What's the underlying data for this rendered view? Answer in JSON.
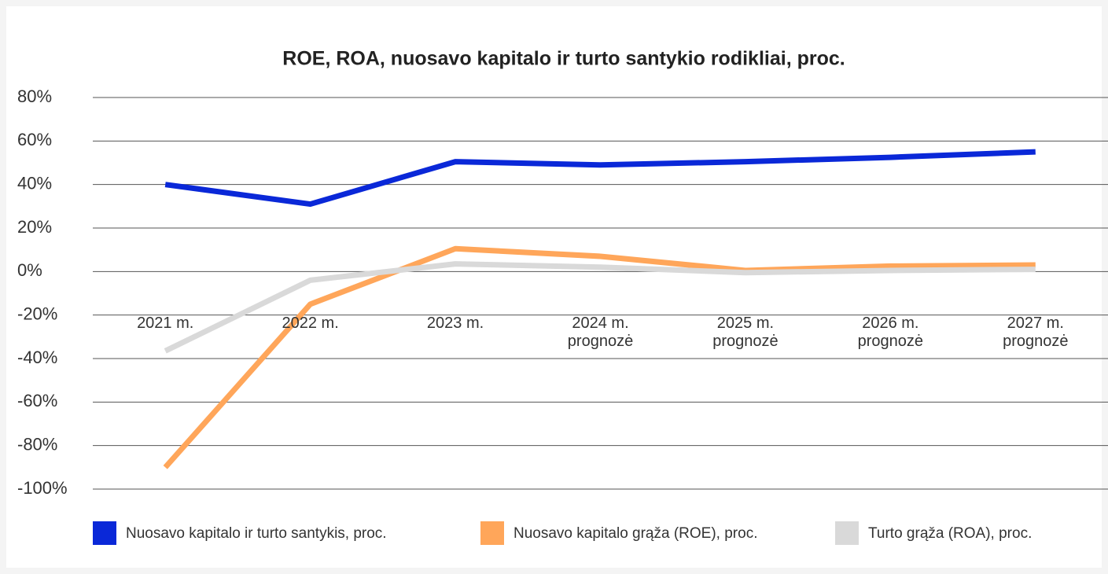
{
  "chart_data": {
    "type": "line",
    "title": "ROE, ROA, nuosavo kapitalo ir turto santykio rodikliai, proc.",
    "categories": [
      "2021 m.",
      "2022 m.",
      "2023 m.",
      "2024 m. prognozė",
      "2025 m. prognozė",
      "2026 m. prognozė",
      "2027 m. prognozė"
    ],
    "series": [
      {
        "name": "Nuosavo kapitalo ir turto santykis, proc.",
        "color": "#0a28d8",
        "values": [
          40,
          31,
          50.5,
          49,
          50.5,
          52.5,
          55
        ]
      },
      {
        "name": "Nuosavo kapitalo grąža (ROE), proc.",
        "color": "#ffa65a",
        "values": [
          -90,
          -15,
          10.5,
          7,
          0.5,
          2.5,
          3
        ]
      },
      {
        "name": "Turto grąža (ROA), proc.",
        "color": "#d9d9d9",
        "values": [
          -36.5,
          -4,
          3.5,
          2,
          -0.5,
          0.5,
          1
        ]
      }
    ],
    "ylim": [
      -100,
      80
    ],
    "yticks": [
      {
        "value": 80,
        "label": "80%"
      },
      {
        "value": 60,
        "label": "60%"
      },
      {
        "value": 40,
        "label": "40%"
      },
      {
        "value": 20,
        "label": "20%"
      },
      {
        "value": 0,
        "label": "0%"
      },
      {
        "value": -20,
        "label": "-20%"
      },
      {
        "value": -40,
        "label": "-40%"
      },
      {
        "value": -60,
        "label": "-60%"
      },
      {
        "value": -80,
        "label": "-80%"
      },
      {
        "value": -100,
        "label": "-100%"
      }
    ],
    "grid": true,
    "legend": "bottom"
  }
}
